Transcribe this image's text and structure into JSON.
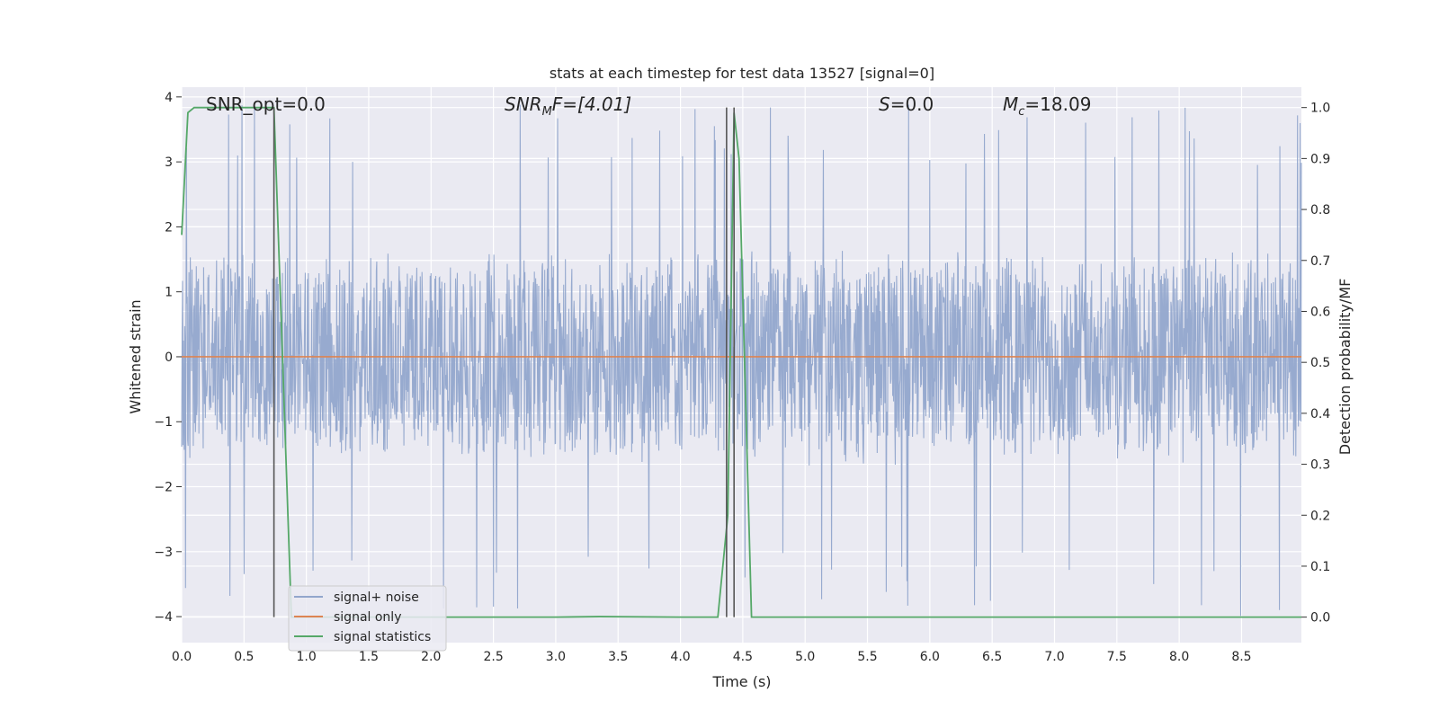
{
  "chart_data": {
    "type": "line",
    "title": "stats at each timestep for test data 13527 [signal=0]",
    "xlabel": "Time (s)",
    "ylabel": "Whitened strain",
    "y2label": "Detection probability/MF",
    "xlim": [
      0.0,
      8.98
    ],
    "ylim": [
      -4.4,
      4.15
    ],
    "y2lim": [
      -0.05,
      1.04
    ],
    "xticks": [
      0.0,
      0.5,
      1.0,
      1.5,
      2.0,
      2.5,
      3.0,
      3.5,
      4.0,
      4.5,
      5.0,
      5.5,
      6.0,
      6.5,
      7.0,
      7.5,
      8.0,
      8.5
    ],
    "xtick_labels": [
      "0.0",
      "0.5",
      "1.0",
      "1.5",
      "2.0",
      "2.5",
      "3.0",
      "3.5",
      "4.0",
      "4.5",
      "5.0",
      "5.5",
      "6.0",
      "6.5",
      "7.0",
      "7.5",
      "8.0",
      "8.5"
    ],
    "yticks": [
      4,
      3,
      2,
      1,
      0,
      -1,
      -2,
      -3,
      -4
    ],
    "ytick_labels": [
      "4",
      "3",
      "2",
      "1",
      "0",
      "−1",
      "−2",
      "−3",
      "−4"
    ],
    "y2ticks": [
      1.0,
      0.9,
      0.8,
      0.7,
      0.6,
      0.5,
      0.4,
      0.3,
      0.2,
      0.1,
      0.0
    ],
    "y2tick_labels": [
      "1.0",
      "0.9",
      "0.8",
      "0.7",
      "0.6",
      "0.5",
      "0.4",
      "0.3",
      "0.2",
      "0.1",
      "0.0"
    ],
    "grid": true,
    "legend_position": "lower-left",
    "annotations": {
      "snr_opt": "SNR_opt=0.0",
      "snr_mf_main": "SNR",
      "snr_mf_sub": "M",
      "snr_mf_rest": "F=[4.01]",
      "s_main": "S",
      "s_rest": "=0.0",
      "mc_main": "M",
      "mc_sub": "c",
      "mc_rest": "=18.09"
    },
    "series": [
      {
        "name": "signal+ noise",
        "color": "#92a6cc",
        "axis": "left",
        "noise_envelope": {
          "typical_abs": 1.7,
          "peak_max": 3.9,
          "peak_min": -4.0
        },
        "x": [
          0.0,
          8.98
        ],
        "y": [
          0.0,
          0.0
        ]
      },
      {
        "name": "signal only",
        "color": "#dd8452",
        "axis": "left",
        "x": [
          0.0,
          8.98
        ],
        "y": [
          0.0,
          0.0
        ]
      },
      {
        "name": "signal statistics",
        "color": "#55a868",
        "axis": "right",
        "x": [
          0.0,
          0.05,
          0.1,
          0.7,
          0.74,
          0.88,
          1.0,
          2.0,
          3.0,
          3.35,
          4.0,
          4.3,
          4.38,
          4.43,
          4.47,
          4.57,
          5.0,
          6.0,
          7.0,
          8.0,
          8.98
        ],
        "y": [
          0.75,
          0.99,
          1.0,
          1.0,
          1.0,
          0.0,
          0.0,
          0.0,
          0.0,
          0.001,
          0.0,
          0.0,
          0.2,
          0.99,
          0.9,
          0.0,
          0.0,
          0.0,
          0.0,
          0.0,
          0.0
        ]
      }
    ],
    "markers": {
      "color": "#555555",
      "x": [
        0.74,
        4.37,
        4.43
      ]
    }
  }
}
